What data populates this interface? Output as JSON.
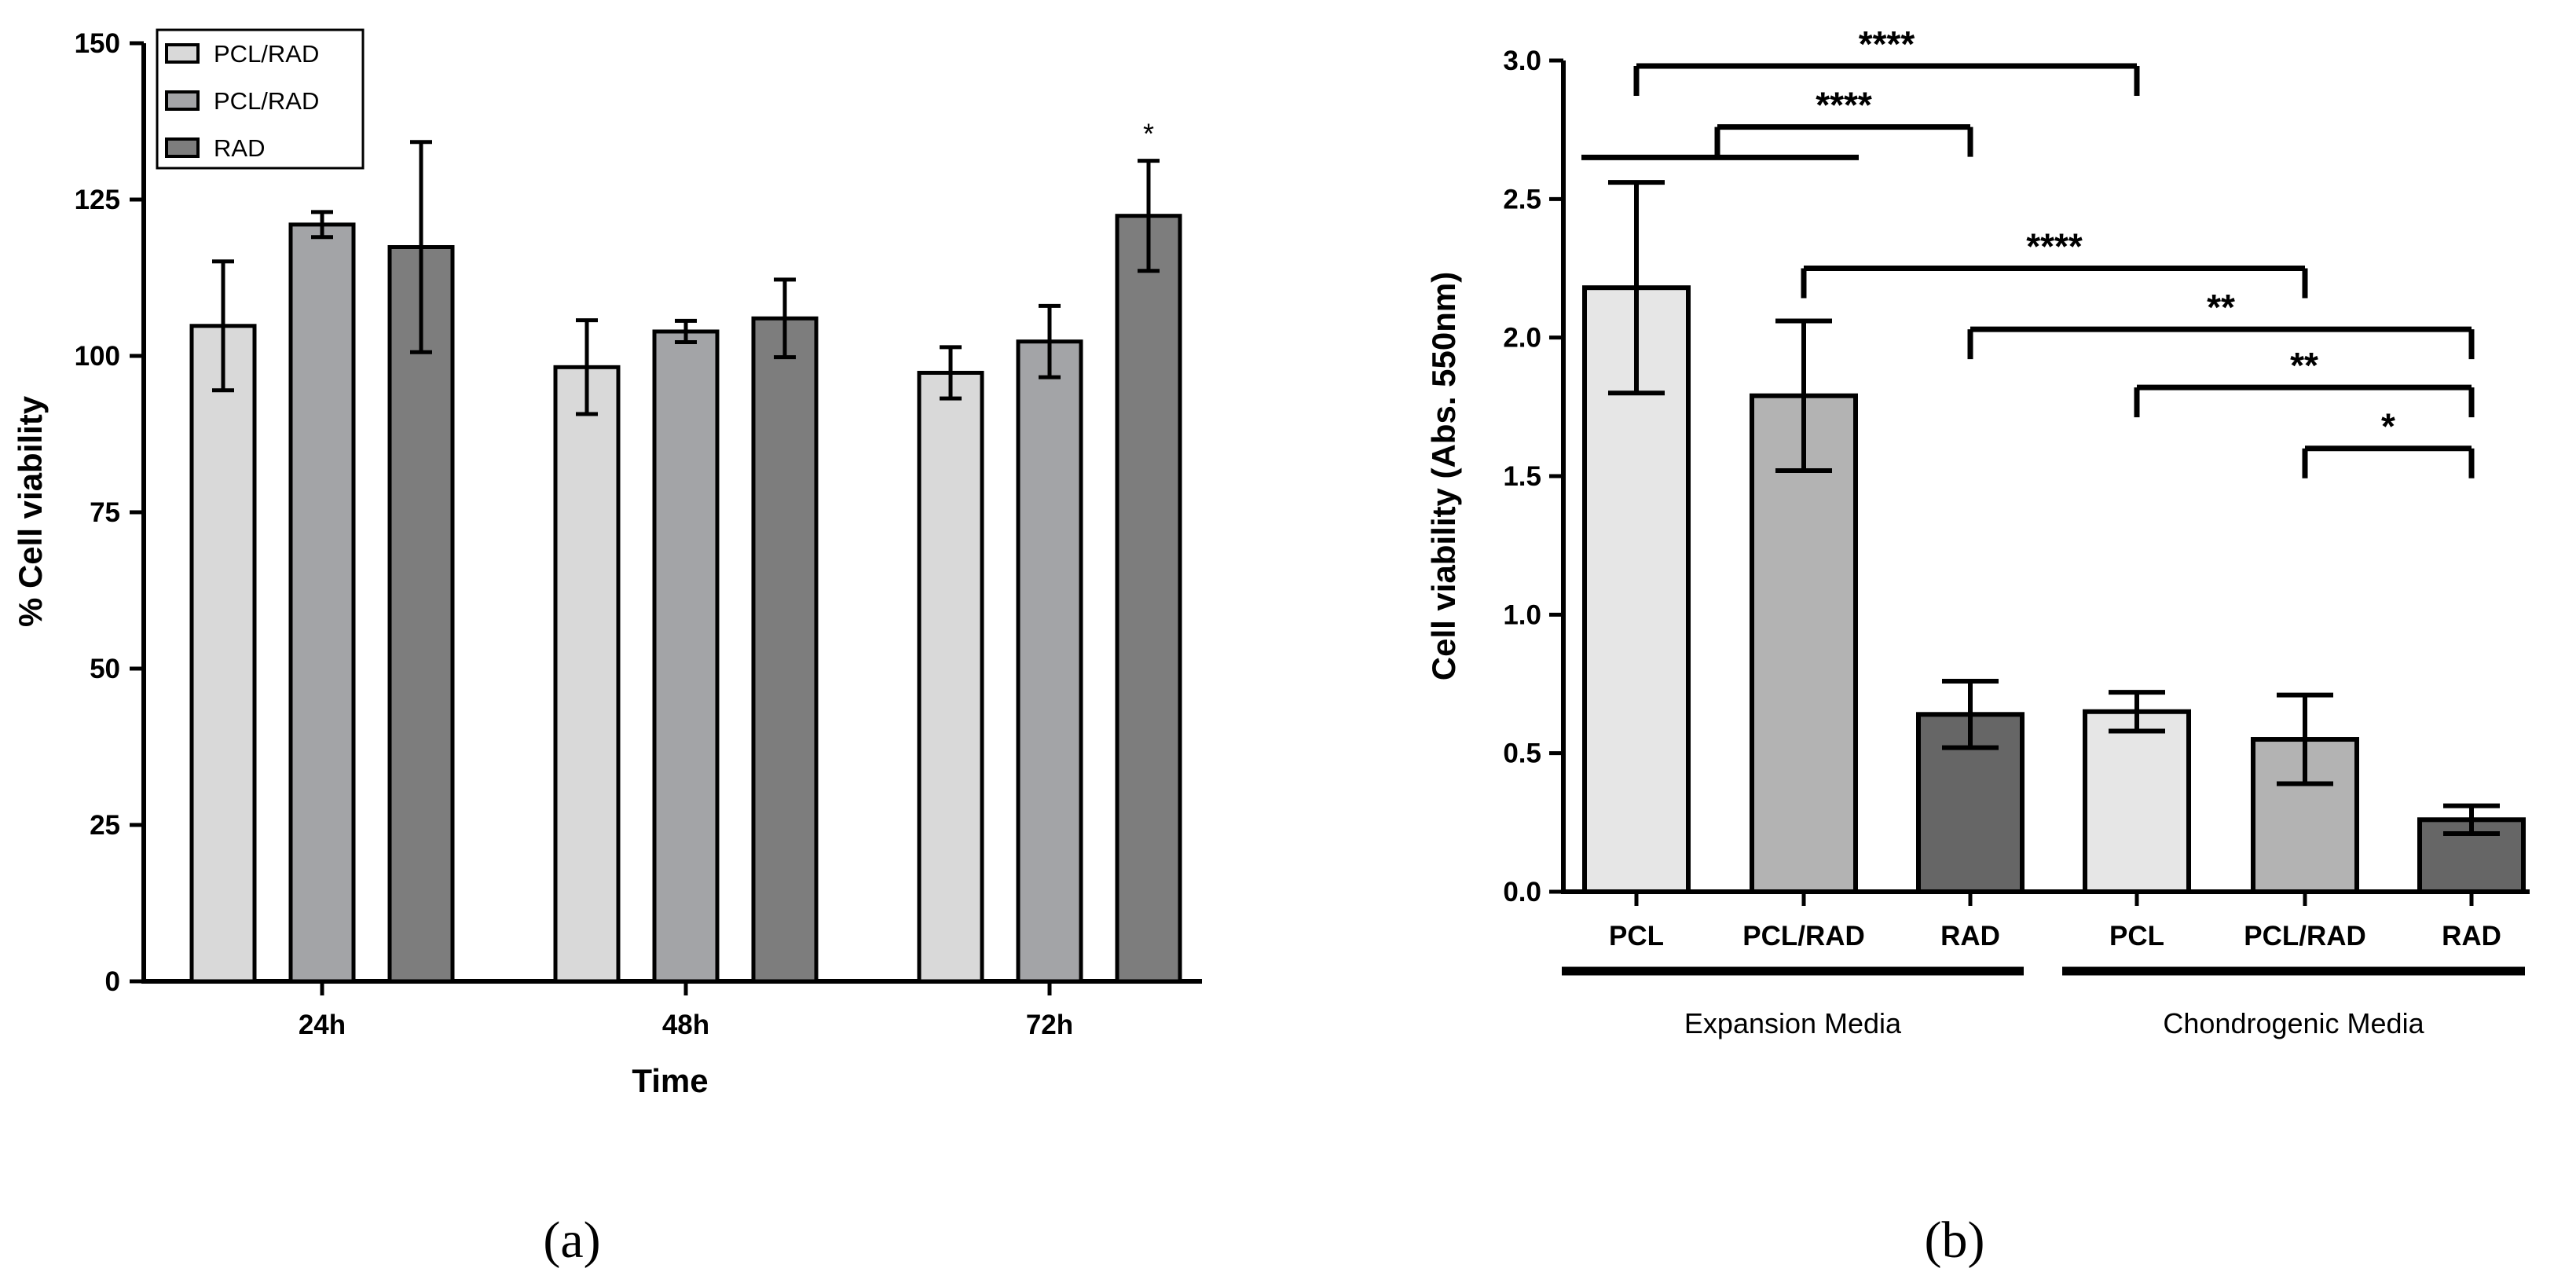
{
  "chart_data": [
    {
      "type": "bar",
      "panel_label": "(a)",
      "xlabel": "Time",
      "ylabel": "% Cell viability",
      "ylim": [
        0,
        150
      ],
      "yticks": [
        "0",
        "25",
        "50",
        "75",
        "100",
        "125",
        "150"
      ],
      "categories": [
        "24h",
        "48h",
        "72h"
      ],
      "legend_position": "top-left",
      "series": [
        {
          "name": "PCL/RAD",
          "color": "#d9d9d9",
          "values": [
            104.8,
            98.2,
            97.3
          ],
          "errors": [
            10.3,
            7.5,
            4.1
          ]
        },
        {
          "name": "PCL/RAD",
          "color": "#a3a4a7",
          "values": [
            121.0,
            103.9,
            102.3
          ],
          "errors": [
            2.0,
            1.7,
            5.7
          ]
        },
        {
          "name": "RAD",
          "color": "#7d7d7d",
          "values": [
            117.4,
            106.0,
            122.4
          ],
          "errors": [
            16.8,
            6.2,
            8.8
          ]
        }
      ],
      "annotations": [
        {
          "category": "72h",
          "series": 2,
          "text": "*"
        }
      ]
    },
    {
      "type": "bar",
      "panel_label": "(b)",
      "ylabel": "Cell viability (Abs. 550nm)",
      "ylim": [
        0,
        3.0
      ],
      "yticks": [
        "0.0",
        "0.5",
        "1.0",
        "1.5",
        "2.0",
        "2.5",
        "3.0"
      ],
      "categories": [
        "PCL",
        "PCL/RAD",
        "RAD",
        "PCL",
        "PCL/RAD",
        "RAD"
      ],
      "values": [
        2.18,
        1.79,
        0.64,
        0.65,
        0.55,
        0.26
      ],
      "errors": [
        0.38,
        0.27,
        0.12,
        0.07,
        0.16,
        0.05
      ],
      "colors": [
        "#e6e6e6",
        "#b3b3b3",
        "#666666",
        "#e6e6e6",
        "#b3b3b3",
        "#666666"
      ],
      "groups": [
        {
          "label": "Expansion Media",
          "from": 0,
          "to": 2
        },
        {
          "label": "Chondrogenic Media",
          "from": 3,
          "to": 5
        }
      ],
      "significance": [
        {
          "from": "0",
          "to": "3",
          "y": 2.98,
          "text": "****"
        },
        {
          "from": "group0",
          "to": "2",
          "y": 2.76,
          "text": "****"
        },
        {
          "from": "1",
          "to": "4",
          "y": 2.25,
          "text": "****"
        },
        {
          "from": "2",
          "to": "5",
          "y": 2.03,
          "text": "**"
        },
        {
          "from": "3",
          "to": "5",
          "y": 1.82,
          "text": "**"
        },
        {
          "from": "4",
          "to": "5",
          "y": 1.6,
          "text": "*"
        }
      ]
    }
  ]
}
